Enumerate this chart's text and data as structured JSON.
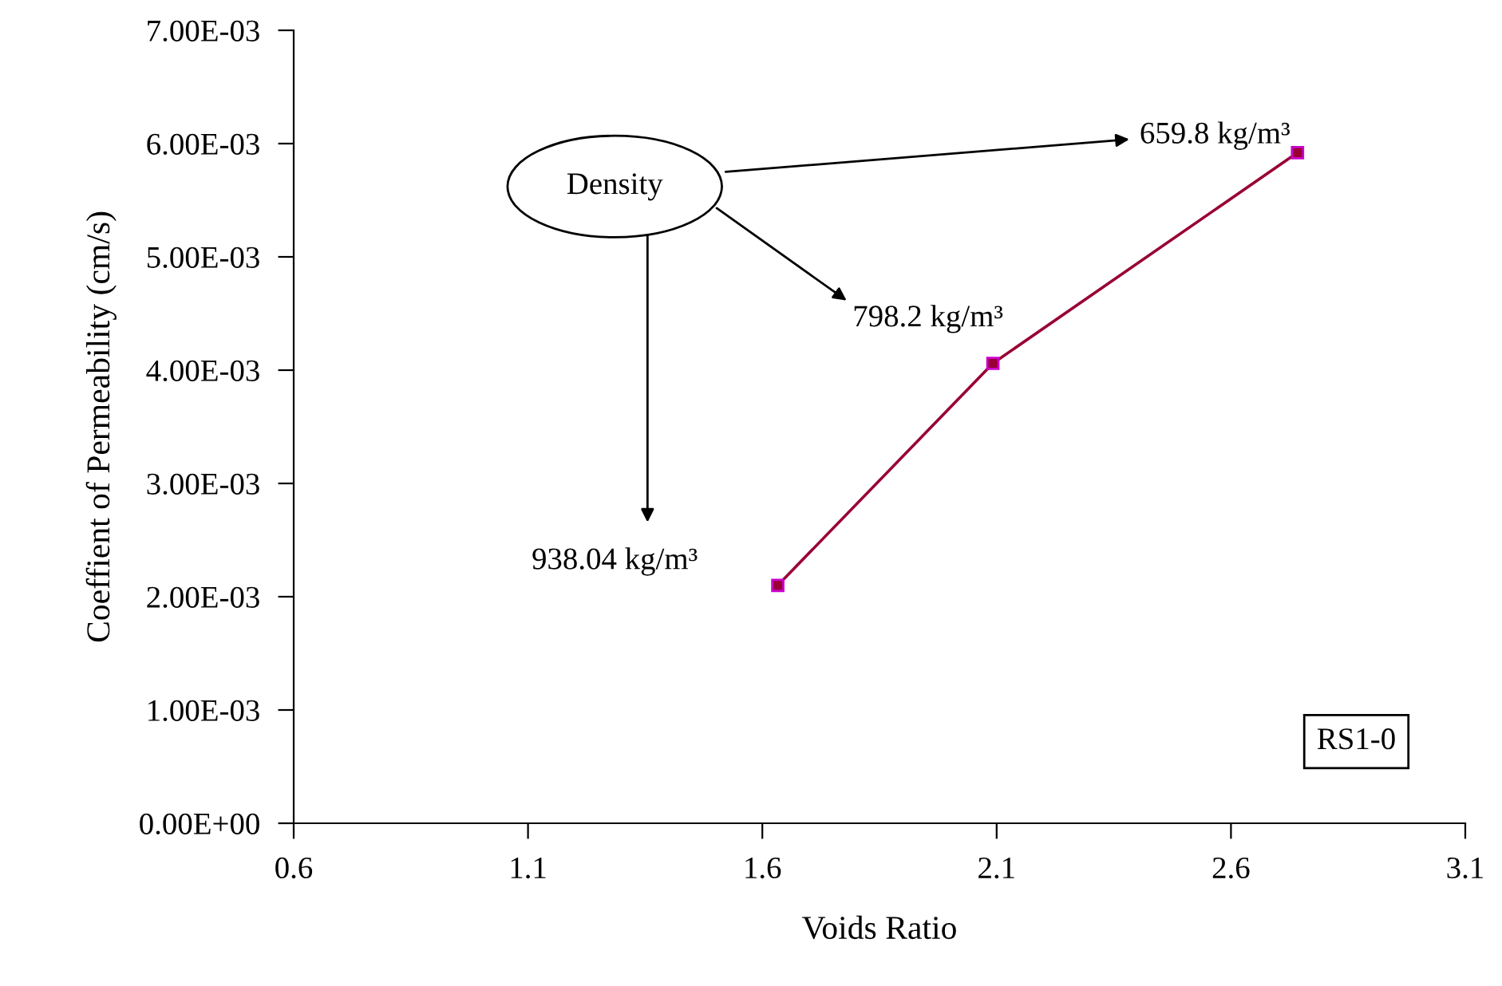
{
  "chart_data": {
    "type": "line",
    "xlabel": "Voids Ratio",
    "ylabel": "Coeffient of Permeability (cm/s)",
    "x": [
      1.633,
      2.092,
      2.742
    ],
    "series": [
      {
        "color": "#990033",
        "values": [
          0.0021,
          0.00406,
          0.00592
        ]
      }
    ],
    "marker": "square",
    "line_style": "solid",
    "grid": false,
    "legend": false,
    "xlim": [
      0.6,
      3.1
    ],
    "xticks": [
      0.6,
      1.1,
      1.6,
      2.1,
      2.6,
      3.1
    ],
    "ylim": [
      0,
      0.007
    ],
    "yticks": [
      {
        "value": 0,
        "label": "0.00E+00"
      },
      {
        "value": 0.001,
        "label": "1.00E-03"
      },
      {
        "value": 0.002,
        "label": "2.00E-03"
      },
      {
        "value": 0.003,
        "label": "3.00E-03"
      },
      {
        "value": 0.004,
        "label": "4.00E-03"
      },
      {
        "value": 0.005,
        "label": "5.00E-03"
      },
      {
        "value": 0.006,
        "label": "6.00E-03"
      },
      {
        "value": 0.007,
        "label": "7.00E-03"
      }
    ],
    "annotations": [
      "Density",
      "659.8 kg/m³",
      "798.2 kg/m³",
      "938.04 kg/m³",
      "RS1-0"
    ]
  }
}
